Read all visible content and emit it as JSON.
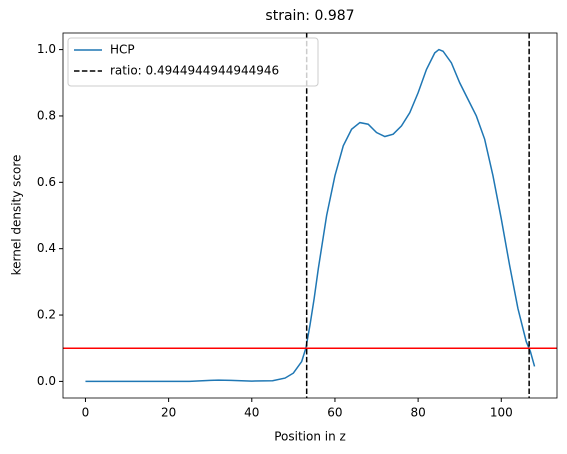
{
  "chart_data": {
    "type": "line",
    "title": "strain: 0.987",
    "x_label": "Position in z",
    "y_label": "kernel density score",
    "x": [
      0,
      5,
      10,
      15,
      20,
      25,
      30,
      32,
      35,
      40,
      45,
      48,
      50,
      52,
      53,
      54,
      55,
      56,
      58,
      60,
      62,
      64,
      66,
      68,
      70,
      72,
      74,
      76,
      78,
      80,
      82,
      84,
      85,
      86,
      88,
      90,
      92,
      94,
      96,
      98,
      100,
      102,
      104,
      106,
      107,
      108
    ],
    "series": [
      {
        "name": "HCP",
        "color": "#1f77b4",
        "values": [
          0.0,
          0.0,
          0.0,
          0.0,
          0.0,
          0.0,
          0.003,
          0.004,
          0.003,
          0.001,
          0.002,
          0.01,
          0.025,
          0.06,
          0.1,
          0.17,
          0.25,
          0.34,
          0.5,
          0.62,
          0.71,
          0.76,
          0.78,
          0.775,
          0.75,
          0.738,
          0.745,
          0.77,
          0.81,
          0.87,
          0.94,
          0.99,
          1.0,
          0.995,
          0.96,
          0.9,
          0.85,
          0.8,
          0.73,
          0.62,
          0.49,
          0.35,
          0.22,
          0.12,
          0.09,
          0.045
        ]
      }
    ],
    "vlines": {
      "name": "ratio: 0.4944944944944946",
      "color": "#000000",
      "values": [
        53.2,
        106.7
      ]
    },
    "hline": {
      "color": "#ff0000",
      "value": 0.1
    },
    "xlim": [
      -5.4,
      113.4
    ],
    "xticks": [
      0,
      20,
      40,
      60,
      80,
      100
    ],
    "ylim": [
      -0.05,
      1.05
    ],
    "yticks": [
      {
        "value": 0,
        "label": "0.0"
      },
      0.2,
      0.4,
      0.6,
      0.8,
      {
        "value": 1,
        "label": "1.0"
      }
    ],
    "legend": "upper left"
  }
}
